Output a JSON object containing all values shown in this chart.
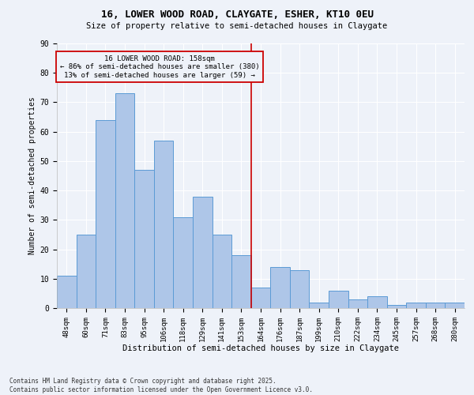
{
  "title1": "16, LOWER WOOD ROAD, CLAYGATE, ESHER, KT10 0EU",
  "title2": "Size of property relative to semi-detached houses in Claygate",
  "xlabel": "Distribution of semi-detached houses by size in Claygate",
  "ylabel": "Number of semi-detached properties",
  "categories": [
    "48sqm",
    "60sqm",
    "71sqm",
    "83sqm",
    "95sqm",
    "106sqm",
    "118sqm",
    "129sqm",
    "141sqm",
    "153sqm",
    "164sqm",
    "176sqm",
    "187sqm",
    "199sqm",
    "210sqm",
    "222sqm",
    "234sqm",
    "245sqm",
    "257sqm",
    "268sqm",
    "280sqm"
  ],
  "values": [
    11,
    25,
    64,
    73,
    47,
    57,
    31,
    38,
    25,
    18,
    7,
    14,
    13,
    2,
    6,
    3,
    4,
    1,
    2,
    2,
    2
  ],
  "bar_color": "#aec6e8",
  "bar_edge_color": "#5b9bd5",
  "vline_x": 9.5,
  "vline_color": "#cc0000",
  "annotation_text": "16 LOWER WOOD ROAD: 158sqm\n← 86% of semi-detached houses are smaller (380)\n13% of semi-detached houses are larger (59) →",
  "annotation_box_color": "#cc0000",
  "ylim": [
    0,
    90
  ],
  "yticks": [
    0,
    10,
    20,
    30,
    40,
    50,
    60,
    70,
    80,
    90
  ],
  "footer1": "Contains HM Land Registry data © Crown copyright and database right 2025.",
  "footer2": "Contains public sector information licensed under the Open Government Licence v3.0.",
  "bg_color": "#eef2f9",
  "grid_color": "#ffffff"
}
